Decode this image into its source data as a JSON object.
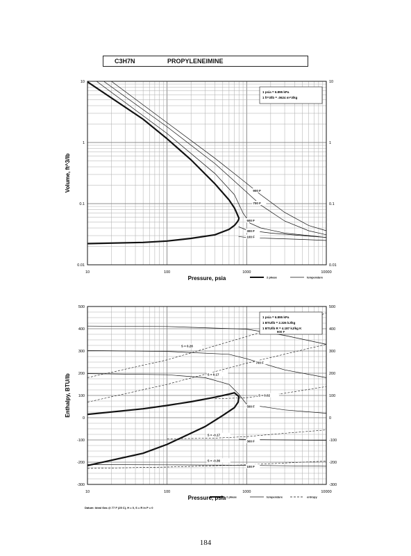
{
  "page": {
    "title_formula": "C3H7N",
    "title_name": "PROPYLENEIMINE",
    "page_number": "184"
  },
  "chart_data": [
    {
      "type": "line",
      "x_scale": "log",
      "y_scale": "log",
      "xlabel": "Pressure,  psia",
      "ylabel": "Volume, ft^3/lb",
      "xlim": [
        10,
        10000
      ],
      "ylim": [
        0.01,
        10
      ],
      "x_ticks": [
        "10",
        "100",
        "1000",
        "10000"
      ],
      "y_ticks_left": [
        "0.01",
        "0.1",
        "1",
        "10"
      ],
      "y_ticks_right": [
        "0.01",
        "0.1",
        "1",
        "10"
      ],
      "grid": true,
      "legend_position": "bottom-right",
      "legend": [
        {
          "label": "2 phase",
          "style": "thick"
        },
        {
          "label": "temperature",
          "style": "thin"
        }
      ],
      "notes": [
        "1 psia  =  6.895 kPa",
        "1 ft^3/lb  =  .0624 m^3/kg"
      ],
      "series": [
        {
          "kind": "2phase",
          "x": [
            10,
            50,
            100,
            200,
            400,
            600,
            700,
            750,
            780,
            800,
            790,
            760,
            700,
            600,
            400,
            200,
            100,
            50,
            10
          ],
          "y": [
            9.8,
            2.4,
            1.15,
            0.52,
            0.21,
            0.115,
            0.085,
            0.07,
            0.062,
            0.058,
            0.054,
            0.05,
            0.044,
            0.038,
            0.031,
            0.027,
            0.0245,
            0.0232,
            0.0222
          ]
        },
        {
          "name": "900 F",
          "x": [
            20,
            100,
            400,
            800,
            1500,
            3000,
            6000,
            10000
          ],
          "y": [
            10,
            2.1,
            0.55,
            0.27,
            0.14,
            0.072,
            0.044,
            0.036
          ]
        },
        {
          "name": "700 F",
          "x": [
            16,
            100,
            400,
            800,
            1500,
            3000,
            6000,
            10000
          ],
          "y": [
            10,
            1.8,
            0.45,
            0.2,
            0.095,
            0.052,
            0.036,
            0.031
          ]
        },
        {
          "name": "500 F",
          "x": [
            13,
            100,
            400,
            700,
            900,
            1100,
            1500,
            3000,
            6000,
            10000
          ],
          "y": [
            10,
            1.4,
            0.31,
            0.14,
            0.07,
            0.048,
            0.04,
            0.033,
            0.03,
            0.028
          ]
        },
        {
          "name": "300 F",
          "x": [
            790,
            1000,
            2000,
            5000,
            10000
          ],
          "y": [
            0.042,
            0.037,
            0.033,
            0.03,
            0.028
          ]
        },
        {
          "name": "100 F",
          "x": [
            790,
            1000,
            2000,
            5000,
            10000
          ],
          "y": [
            0.029,
            0.028,
            0.027,
            0.026,
            0.025
          ]
        }
      ],
      "curve_labels": [
        {
          "text": "900 F",
          "x": 1200,
          "y": 0.16
        },
        {
          "text": "700 F",
          "x": 1200,
          "y": 0.1
        },
        {
          "text": "500 F",
          "x": 1000,
          "y": 0.052
        },
        {
          "text": "300 F",
          "x": 1000,
          "y": 0.035
        },
        {
          "text": "100 F",
          "x": 1000,
          "y": 0.028
        }
      ]
    },
    {
      "type": "line",
      "x_scale": "log",
      "y_scale": "linear",
      "xlabel": "Pressure,  psia",
      "ylabel": "Enthalpy, BTU/lb",
      "xlim": [
        10,
        10000
      ],
      "ylim": [
        -300,
        500
      ],
      "x_ticks": [
        "10",
        "100",
        "1000",
        "10000"
      ],
      "y_ticks_left": [
        "-300",
        "-200",
        "-100",
        "0",
        "100",
        "200",
        "300",
        "400",
        "500"
      ],
      "y_ticks_right": [
        "-300",
        "-200",
        "-100",
        "0",
        "100",
        "200",
        "300",
        "400",
        "500"
      ],
      "grid": true,
      "legend_position": "bottom-right",
      "legend": [
        {
          "label": "2 phase",
          "style": "thick"
        },
        {
          "label": "temperature",
          "style": "thin"
        },
        {
          "label": "entropy",
          "style": "dashed"
        }
      ],
      "notes": [
        "1 psia  =  6.895 kPa",
        "1 BTU/lb  =  2.326 kJ/kg",
        "1 BTU/lb R  =  4.187 kJ/kg K"
      ],
      "footnote": "Datum: Ideal Gas @ 77 F (25 C),  H = 0,  S = R ln P = 0",
      "series": [
        {
          "kind": "2phase",
          "x": [
            10,
            50,
            100,
            200,
            400,
            600,
            700,
            800,
            780,
            700,
            500,
            300,
            100,
            50,
            10
          ],
          "y": [
            15,
            40,
            55,
            72,
            92,
            106,
            112,
            95,
            70,
            45,
            10,
            -40,
            -120,
            -160,
            -215
          ]
        },
        {
          "name": "900 F",
          "x": [
            10,
            100,
            1000,
            3000,
            10000
          ],
          "y": [
            412,
            410,
            398,
            370,
            330
          ]
        },
        {
          "name": "700 F",
          "x": [
            10,
            100,
            600,
            1000,
            3000,
            10000
          ],
          "y": [
            302,
            298,
            285,
            265,
            215,
            180
          ]
        },
        {
          "name": "500 F",
          "x": [
            10,
            100,
            300,
            600,
            800,
            1000,
            3000,
            10000
          ],
          "y": [
            198,
            193,
            180,
            150,
            105,
            60,
            35,
            20
          ]
        },
        {
          "name": "300 F",
          "x": [
            800,
            1000,
            3000,
            10000
          ],
          "y": [
            -97,
            -98,
            -100,
            -102
          ]
        },
        {
          "name": "100 F",
          "x": [
            10,
            100,
            1000,
            10000
          ],
          "y": [
            -211,
            -212,
            -214,
            -218
          ]
        },
        {
          "kind": "entropy",
          "name": "S = 0.28",
          "x": [
            10,
            100,
            1000,
            10000
          ],
          "y": [
            180,
            260,
            365,
            470
          ]
        },
        {
          "kind": "entropy",
          "name": "S = 0.17",
          "x": [
            10,
            100,
            1000,
            10000
          ],
          "y": [
            70,
            150,
            245,
            330
          ]
        },
        {
          "kind": "entropy",
          "name": "S = 0.02",
          "x": [
            400,
            1000,
            3000,
            10000
          ],
          "y": [
            85,
            90,
            110,
            140
          ]
        },
        {
          "kind": "entropy",
          "name": "S = -0.17",
          "x": [
            100,
            400,
            1000,
            3000,
            10000
          ],
          "y": [
            -95,
            -92,
            -85,
            -70,
            -55
          ]
        },
        {
          "kind": "entropy",
          "name": "S = -0.36",
          "x": [
            10,
            100,
            1000,
            10000
          ],
          "y": [
            -228,
            -222,
            -212,
            -195
          ]
        }
      ],
      "curve_labels": [
        {
          "text": "900 F",
          "x": 2400,
          "y": 385
        },
        {
          "text": "700 F",
          "x": 1300,
          "y": 246
        },
        {
          "text": "500 F",
          "x": 1000,
          "y": 48
        },
        {
          "text": "300 F",
          "x": 1000,
          "y": -108
        },
        {
          "text": "100 F",
          "x": 1000,
          "y": -222
        },
        {
          "text": "S = 0.28",
          "x": 150,
          "y": 320
        },
        {
          "text": "S = 0.17",
          "x": 320,
          "y": 192
        },
        {
          "text": "S = 0.02",
          "x": 1400,
          "y": 98
        },
        {
          "text": "S = -0.17",
          "x": 320,
          "y": -80
        },
        {
          "text": "S = -0.36",
          "x": 320,
          "y": -195
        }
      ]
    }
  ]
}
